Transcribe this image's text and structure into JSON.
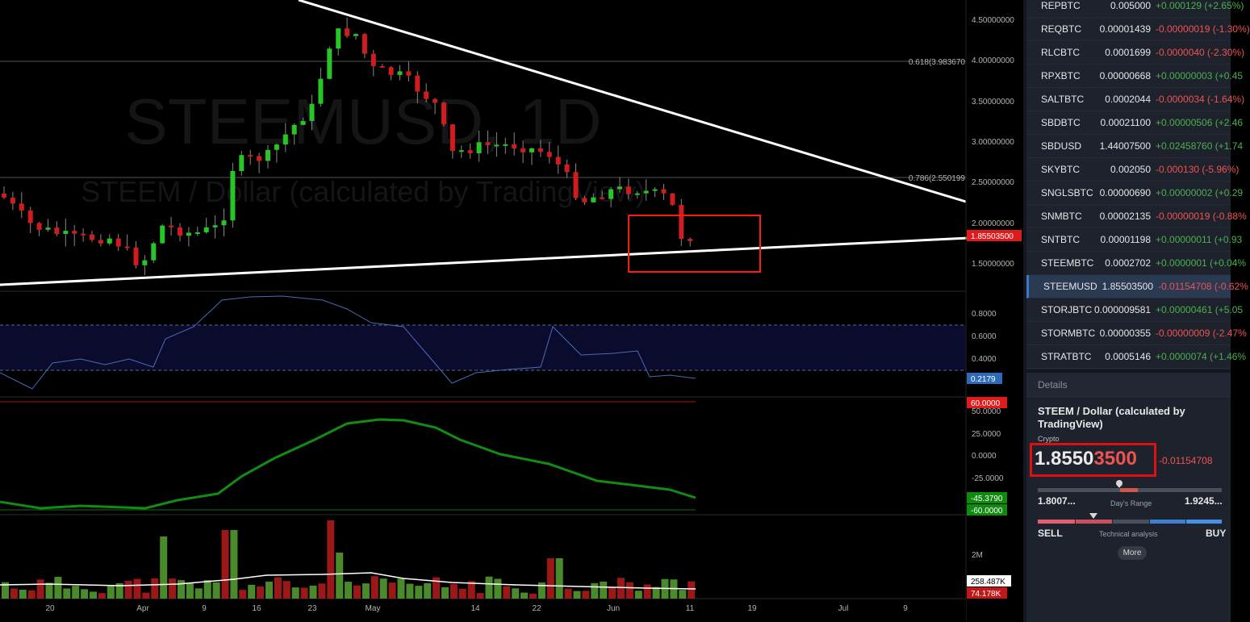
{
  "chart": {
    "watermark_symbol": "STEEMUSD, 1D",
    "watermark_desc": "STEEM / Dollar (calculated by TradingView)",
    "price_axis": [
      "4.50000000",
      "4.00000000",
      "3.50000000",
      "3.00000000",
      "2.50000000",
      "2.00000000",
      "1.50000000"
    ],
    "fib_618_label": "0.618(3.983670",
    "fib_786_label": "0.786(2.550199",
    "last_price_tag": "1.85503500",
    "osc_axis": [
      "0.8000",
      "0.6000",
      "0.4000"
    ],
    "osc_value_tag": "0.2179",
    "mom_top_tag": "60.0000",
    "mom_axis": [
      "50.0000",
      "25.0000",
      "0.0000",
      "-25.0000"
    ],
    "mom_value_tag": "-45.3790",
    "mom_bottom_tag": "-60.0000",
    "vol_axis_label": "2M",
    "vol_ma_tag": "258.487K",
    "vol_value_tag": "74.178K",
    "time_axis": [
      "20",
      "Apr",
      "9",
      "16",
      "23",
      "May",
      "14",
      "22",
      "Jun",
      "11",
      "19",
      "Jul",
      "9"
    ],
    "colors": {
      "up": "#26c626",
      "down": "#d01c1c",
      "trendline": "#ffffff",
      "highlight_box": "#ff1a1a"
    }
  },
  "watchlist": [
    {
      "symbol": "REPBTC",
      "last_main": "0.00",
      "last_dim": "5000",
      "change": "+0.000129 (+2.65%)",
      "dir": "up"
    },
    {
      "symbol": "REQBTC",
      "last_main": "0.000014",
      "last_dim": "39",
      "change": "-0.00000019 (-1.30%)",
      "dir": "down"
    },
    {
      "symbol": "RLCBTC",
      "last_main": "0.00016",
      "last_dim": "99",
      "change": "-0.0000040 (-2.30%)",
      "dir": "down"
    },
    {
      "symbol": "RPXBTC",
      "last_main": "0.00000668",
      "last_dim": "",
      "change": "+0.00000003 (+0.45",
      "dir": "up"
    },
    {
      "symbol": "SALTBTC",
      "last_main": "0.00020",
      "last_dim": "44",
      "change": "-0.0000034 (-1.64%)",
      "dir": "down"
    },
    {
      "symbol": "SBDBTC",
      "last_main": "0.0002",
      "last_dim": "1100",
      "change": "+0.00000506 (+2.46",
      "dir": "up"
    },
    {
      "symbol": "SBDUSD",
      "last_main": "1.44007500",
      "last_dim": "",
      "change": "+0.02458760 (+1.74",
      "dir": "up"
    },
    {
      "symbol": "SKYBTC",
      "last_main": "0.002050",
      "last_dim": "",
      "change": "-0.000130 (-5.96%)",
      "dir": "down"
    },
    {
      "symbol": "SNGLSBTC",
      "last_main": "0.000006",
      "last_dim": "90",
      "change": "+0.00000002 (+0.29",
      "dir": "up"
    },
    {
      "symbol": "SNMBTC",
      "last_main": "0.000021",
      "last_dim": "35",
      "change": "-0.00000019 (-0.88%",
      "dir": "down"
    },
    {
      "symbol": "SNTBTC",
      "last_main": "0.00001198",
      "last_dim": "",
      "change": "+0.00000011 (+0.93",
      "dir": "up"
    },
    {
      "symbol": "STEEMBTC",
      "last_main": "0.0002702",
      "last_dim": "",
      "change": "+0.0000001 (+0.04%",
      "dir": "up"
    },
    {
      "symbol": "STEEMUSD",
      "last_main": "1.85503500",
      "last_dim": "",
      "change": "-0.01154708 (-0.62%",
      "dir": "down",
      "active": true
    },
    {
      "symbol": "STORJBTC",
      "last_main": "0.0000095",
      "last_dim": "81",
      "change": "+0.00000461 (+5.05",
      "dir": "up"
    },
    {
      "symbol": "STORMBTC",
      "last_main": "0.000003",
      "last_dim": "55",
      "change": "-0.00000009 (-2.47%",
      "dir": "down"
    },
    {
      "symbol": "STRATBTC",
      "last_main": "0.00051",
      "last_dim": "46",
      "change": "+0.0000074 (+1.46%",
      "dir": "up"
    }
  ],
  "details": {
    "header": "Details",
    "title": "STEEM / Dollar (calculated by TradingView)",
    "type": "Crypto",
    "price_main": "1.8550",
    "price_highlight": "3500",
    "change": "-0.01154708",
    "range_low": "1.8007...",
    "range_high": "1.9245...",
    "range_label": "Day's Range",
    "sell": "SELL",
    "buy": "BUY",
    "ta_label": "Technical analysis",
    "more": "More"
  }
}
